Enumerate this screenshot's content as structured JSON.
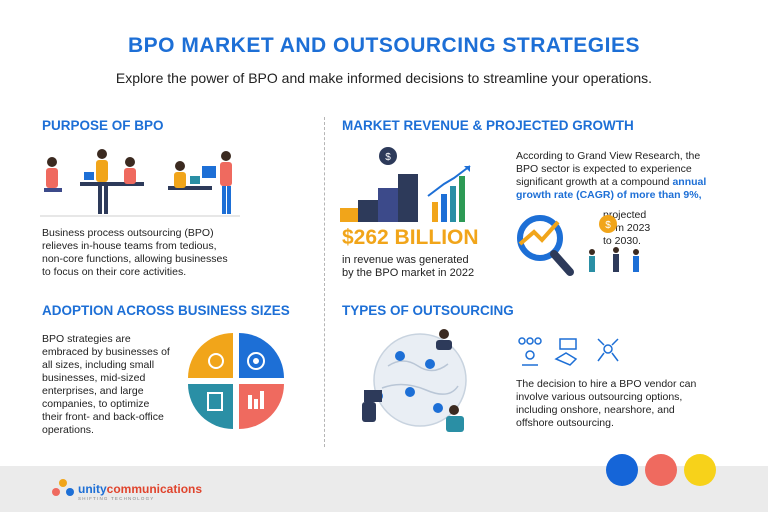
{
  "header": {
    "title": "BPO MARKET AND OUTSOURCING STRATEGIES",
    "subtitle": "Explore the power of BPO and make informed decisions to streamline your operations."
  },
  "purpose": {
    "heading": "PURPOSE OF BPO",
    "body_lines": [
      "Business process outsourcing (BPO)",
      "relieves in-house teams from tedious,",
      "non-core functions, allowing businesses",
      "to focus on their core activities."
    ]
  },
  "adoption": {
    "heading": "ADOPTION ACROSS BUSINESS SIZES",
    "body_lines": [
      "BPO strategies are",
      "embraced by businesses of",
      "all sizes, including small",
      "businesses, mid-sized",
      "enterprises, and large",
      "companies, to optimize",
      "their front- and back-office",
      "operations."
    ],
    "quadrant_colors": [
      "#f1a51a",
      "#1d6fd6",
      "#2a8fa5",
      "#ef6a5f"
    ]
  },
  "revenue": {
    "heading": "MARKET REVENUE & PROJECTED GROWTH",
    "big_number": "$262 BILLION",
    "caption_lines": [
      "in revenue was generated",
      "by the BPO market in 2022"
    ],
    "research_lines": [
      "According to Grand View Research, the",
      "BPO sector is expected to experience",
      "significant growth at a compound"
    ],
    "highlight_1": "annual",
    "highlight_2": "growth rate (CAGR) of more than 9%,",
    "projection_lines": [
      "projected",
      "from 2023",
      "to 2030."
    ]
  },
  "types": {
    "heading": "TYPES OF OUTSOURCING",
    "body_lines": [
      "The decision to hire a BPO vendor can",
      "involve various outsourcing options,",
      "including onshore, nearshore, and",
      "offshore outsourcing."
    ]
  },
  "footer": {
    "logo_part1": "unity",
    "logo_part2": "communications",
    "logo_tagline": "SHIFTING TECHNOLOGY"
  },
  "colors": {
    "accent": "#1d6fd6",
    "orange": "#f1a51a",
    "coral": "#ef6a5f",
    "yellow": "#f7d21a",
    "blue_dot": "#1565d8"
  }
}
